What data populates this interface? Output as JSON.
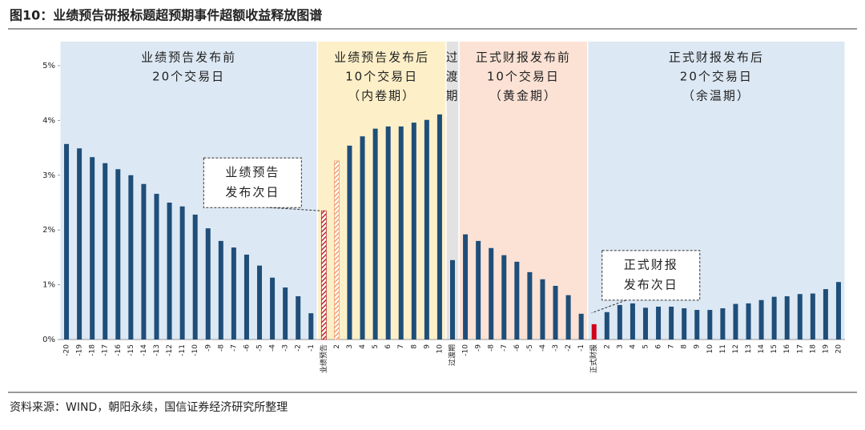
{
  "chart_data": {
    "type": "bar",
    "title": "图10：业绩预告研报标题超预期事件超额收益释放图谱",
    "source": "资料来源：WIND，朝阳永续，国信证券经济研究所整理",
    "categories": [
      "-20",
      "-19",
      "-18",
      "-17",
      "-16",
      "-15",
      "-14",
      "-13",
      "-12",
      "-11",
      "-10",
      "-9",
      "-8",
      "-7",
      "-6",
      "-5",
      "-4",
      "-3",
      "-2",
      "-1",
      "业绩预告",
      "2",
      "3",
      "4",
      "5",
      "6",
      "7",
      "8",
      "9",
      "10",
      "过渡期",
      "-10",
      "-9",
      "-8",
      "-7",
      "-6",
      "-5",
      "-4",
      "-3",
      "-2",
      "-1",
      "正式财报",
      "2",
      "3",
      "4",
      "5",
      "6",
      "7",
      "8",
      "9",
      "10",
      "11",
      "12",
      "13",
      "14",
      "15",
      "16",
      "17",
      "18",
      "19",
      "20"
    ],
    "values": [
      3.57,
      3.49,
      3.33,
      3.22,
      3.11,
      3.0,
      2.84,
      2.66,
      2.5,
      2.43,
      2.28,
      2.03,
      1.8,
      1.68,
      1.55,
      1.35,
      1.13,
      0.95,
      0.79,
      0.48,
      2.35,
      3.26,
      3.54,
      3.71,
      3.85,
      3.89,
      3.89,
      3.96,
      4.01,
      4.11,
      1.45,
      1.92,
      1.8,
      1.67,
      1.54,
      1.42,
      1.23,
      1.1,
      0.98,
      0.81,
      0.47,
      0.28,
      0.5,
      0.63,
      0.66,
      0.58,
      0.6,
      0.6,
      0.57,
      0.54,
      0.54,
      0.57,
      0.65,
      0.66,
      0.72,
      0.78,
      0.79,
      0.83,
      0.84,
      0.92,
      1.05
    ],
    "color": "#1f4e79",
    "highlights": [
      {
        "category": 20,
        "color": "#c0272d",
        "pattern": "hatch"
      },
      {
        "category": 21,
        "color": "#f0a070",
        "pattern": "hatch"
      },
      {
        "category": 41,
        "color": "#d0021b",
        "pattern": "solid"
      }
    ],
    "ylim": [
      0,
      5
    ],
    "yticks": [
      {
        "value": 0,
        "label": "0%"
      },
      {
        "value": 1,
        "label": "1%"
      },
      {
        "value": 2,
        "label": "2%"
      },
      {
        "value": 3,
        "label": "3%"
      },
      {
        "value": 4,
        "label": "4%"
      },
      {
        "value": 5,
        "label": "5%"
      }
    ],
    "regions": [
      {
        "start": 0,
        "end": 19,
        "color": "#dce8f4",
        "lines": [
          "业绩预告发布前",
          "20个交易日"
        ]
      },
      {
        "start": 20,
        "end": 29,
        "color": "#fdf0c8",
        "lines": [
          "业绩预告发布后",
          "10个交易日",
          "（内卷期）"
        ]
      },
      {
        "start": 30,
        "end": 30,
        "color": "#e2e2e2",
        "lines": [
          "过",
          "渡",
          "期"
        ]
      },
      {
        "start": 31,
        "end": 40,
        "color": "#fbe2d5",
        "lines": [
          "正式财报发布前",
          "10个交易日",
          "（黄金期）"
        ]
      },
      {
        "start": 41,
        "end": 60,
        "color": "#dce8f4",
        "lines": [
          "正式财报发布后",
          "20个交易日",
          "（余温期）"
        ]
      }
    ],
    "annotations": [
      {
        "target": 20,
        "lines": [
          "业绩预告",
          "发布次日"
        ]
      },
      {
        "target": 41,
        "lines": [
          "正式财报",
          "发布次日"
        ]
      }
    ]
  }
}
